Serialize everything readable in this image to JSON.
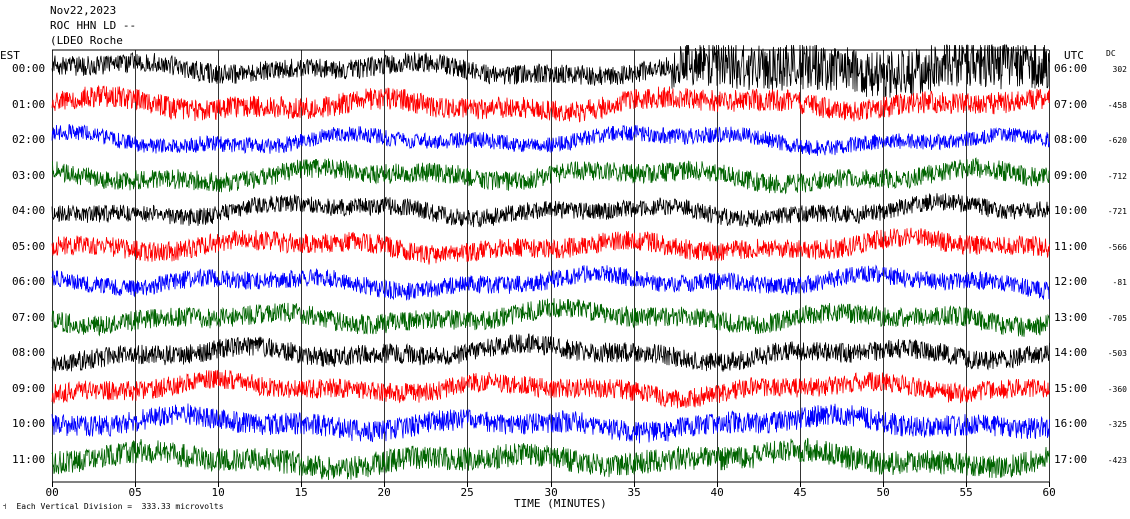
{
  "header": {
    "date": "Nov22,2023",
    "station": "ROC HHN LD --",
    "network": "(LDEO Roche"
  },
  "chart_data": {
    "type": "line",
    "left_axis_label": "EST",
    "right_axis_label": "UTC",
    "dc_label": "DC",
    "xlabel": "TIME (MINUTES)",
    "xlim": [
      0,
      60
    ],
    "x_ticks": [
      "00",
      "05",
      "10",
      "15",
      "20",
      "25",
      "30",
      "35",
      "40",
      "45",
      "50",
      "55",
      "60"
    ],
    "grid_vertical_every_minutes": 5,
    "footer_note": "Each Vertical Division =  333.33 microvolts",
    "vertical_division_microvolts": 333.33,
    "trace_colors": [
      "#000000",
      "#ff0000",
      "#0000ff",
      "#006400"
    ],
    "traces": [
      {
        "est": "00:00",
        "utc": "06:00",
        "dc": "302",
        "color": "#000000"
      },
      {
        "est": "01:00",
        "utc": "07:00",
        "dc": "-458",
        "color": "#ff0000"
      },
      {
        "est": "02:00",
        "utc": "08:00",
        "dc": "-620",
        "color": "#0000ff"
      },
      {
        "est": "03:00",
        "utc": "09:00",
        "dc": "-712",
        "color": "#006400"
      },
      {
        "est": "04:00",
        "utc": "10:00",
        "dc": "-721",
        "color": "#000000"
      },
      {
        "est": "05:00",
        "utc": "11:00",
        "dc": "-566",
        "color": "#ff0000"
      },
      {
        "est": "06:00",
        "utc": "12:00",
        "dc": "-81",
        "color": "#0000ff"
      },
      {
        "est": "07:00",
        "utc": "13:00",
        "dc": "-705",
        "color": "#006400"
      },
      {
        "est": "08:00",
        "utc": "14:00",
        "dc": "-503",
        "color": "#000000"
      },
      {
        "est": "09:00",
        "utc": "15:00",
        "dc": "-360",
        "color": "#ff0000"
      },
      {
        "est": "10:00",
        "utc": "16:00",
        "dc": "-325",
        "color": "#0000ff"
      },
      {
        "est": "11:00",
        "utc": "17:00",
        "dc": "-423",
        "color": "#006400"
      }
    ]
  }
}
